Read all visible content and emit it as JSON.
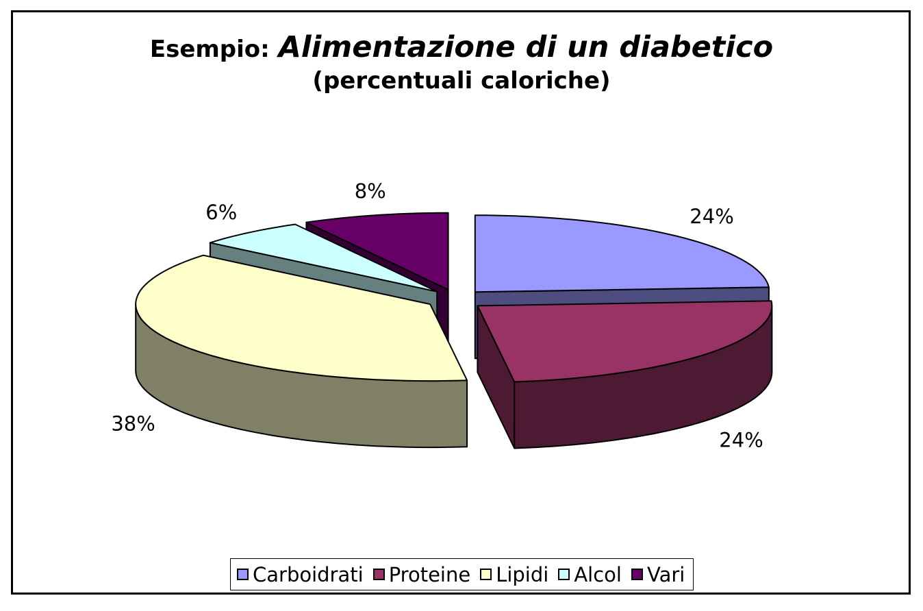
{
  "chart_data": {
    "type": "pie",
    "title_prefix": "Esempio:",
    "title": "Alimentazione di un diabetico",
    "subtitle": "(percentuali caloriche)",
    "three_d": true,
    "legend_position": "bottom",
    "slices": [
      {
        "name": "Carboidrati",
        "value": 24,
        "label": "24%",
        "color": "#9999ff",
        "side_color": "#4d4d80"
      },
      {
        "name": "Proteine",
        "value": 24,
        "label": "24%",
        "color": "#993366",
        "side_color": "#4d1a33"
      },
      {
        "name": "Lipidi",
        "value": 38,
        "label": "38%",
        "color": "#ffffcc",
        "side_color": "#808066"
      },
      {
        "name": "Alcol",
        "value": 6,
        "label": "6%",
        "color": "#ccffff",
        "side_color": "#668080"
      },
      {
        "name": "Vari",
        "value": 8,
        "label": "8%",
        "color": "#660066",
        "side_color": "#330033"
      }
    ]
  }
}
